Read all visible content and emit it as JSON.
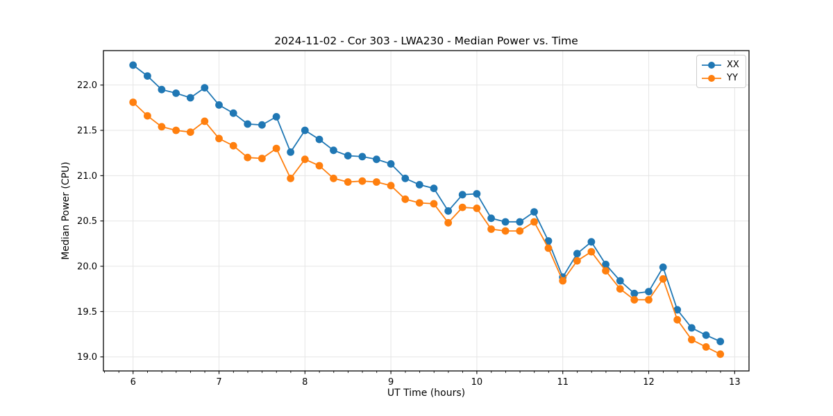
{
  "title": "2024-11-02 - Cor 303 - LWA230 - Median Power vs. Time",
  "xlabel": "UT Time (hours)",
  "ylabel": "Median Power (CPU)",
  "legend": {
    "position": "upper right",
    "items": [
      {
        "label": "XX",
        "color": "#1f77b4"
      },
      {
        "label": "YY",
        "color": "#ff7f0e"
      }
    ]
  },
  "colors": {
    "series_xx": "#1f77b4",
    "series_yy": "#ff7f0e",
    "grid": "#e5e5e5",
    "spine": "#000000",
    "text": "#000000",
    "legend_border": "#cccccc"
  },
  "chart_data": {
    "type": "line",
    "title": "2024-11-02 - Cor 303 - LWA230 - Median Power vs. Time",
    "xlabel": "UT Time (hours)",
    "ylabel": "Median Power (CPU)",
    "grid": true,
    "legend_position": "upper right",
    "marker": "circle",
    "x": [
      6.0,
      6.167,
      6.333,
      6.5,
      6.667,
      6.833,
      7.0,
      7.167,
      7.333,
      7.5,
      7.667,
      7.833,
      8.0,
      8.167,
      8.333,
      8.5,
      8.667,
      8.833,
      9.0,
      9.167,
      9.333,
      9.5,
      9.667,
      9.833,
      10.0,
      10.167,
      10.333,
      10.5,
      10.667,
      10.833,
      11.0,
      11.167,
      11.333,
      11.5,
      11.667,
      11.833,
      12.0,
      12.167,
      12.333,
      12.5,
      12.667,
      12.833
    ],
    "series": [
      {
        "name": "XX",
        "color": "#1f77b4",
        "values": [
          22.22,
          22.1,
          21.95,
          21.91,
          21.86,
          21.97,
          21.78,
          21.69,
          21.57,
          21.56,
          21.65,
          21.26,
          21.5,
          21.4,
          21.28,
          21.22,
          21.21,
          21.18,
          21.13,
          20.97,
          20.9,
          20.86,
          20.61,
          20.79,
          20.8,
          20.53,
          20.49,
          20.49,
          20.6,
          20.28,
          19.88,
          20.14,
          20.27,
          20.02,
          19.84,
          19.7,
          19.72,
          19.99,
          19.52,
          19.32,
          19.24,
          19.17
        ]
      },
      {
        "name": "YY",
        "color": "#ff7f0e",
        "values": [
          21.81,
          21.66,
          21.54,
          21.5,
          21.48,
          21.6,
          21.41,
          21.33,
          21.2,
          21.19,
          21.3,
          20.97,
          21.18,
          21.11,
          20.97,
          20.93,
          20.94,
          20.93,
          20.89,
          20.74,
          20.7,
          20.69,
          20.48,
          20.65,
          20.64,
          20.41,
          20.39,
          20.39,
          20.49,
          20.2,
          19.84,
          20.06,
          20.16,
          19.95,
          19.75,
          19.63,
          19.63,
          19.86,
          19.41,
          19.19,
          19.11,
          19.03
        ]
      }
    ],
    "xlim": [
      5.655,
      13.167
    ],
    "ylim": [
      18.845,
      22.38
    ],
    "xticks": [
      6,
      7,
      8,
      9,
      10,
      11,
      12,
      13
    ],
    "yticks": [
      19.0,
      19.5,
      20.0,
      20.5,
      21.0,
      21.5,
      22.0
    ],
    "x_minor_tick_step": 0.1667
  }
}
